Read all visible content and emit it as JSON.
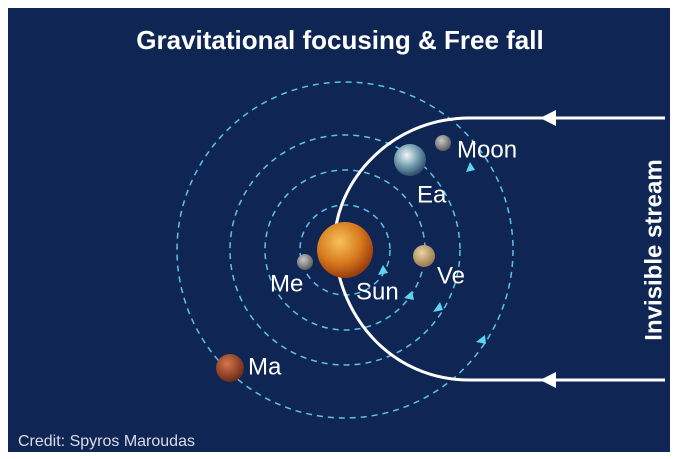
{
  "header": {
    "title": "Gravitational focusing & Free fall"
  },
  "labels": {
    "moon": "Moon",
    "earth": "Ea",
    "mercury": "Me",
    "sun": "Sun",
    "venus": "Ve",
    "mars": "Ma",
    "stream": "Invisible stream"
  },
  "footer": {
    "credit": "Credit: Spyros Maroudas"
  }
}
